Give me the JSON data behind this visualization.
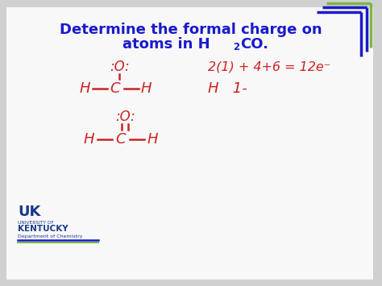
{
  "bg_color": "#d0d0d0",
  "panel_color": "#f8f8f8",
  "title_line1": "Determine the formal charge on",
  "title_color": "#1a1acc",
  "handwriting_color": "#cc2222",
  "border_blue": "#1a1acc",
  "border_green": "#7ab648",
  "uk_blue": "#1a3a8a",
  "eq_text": "2(1) + 4+6 = 12e-",
  "h1_label": "H   1-"
}
